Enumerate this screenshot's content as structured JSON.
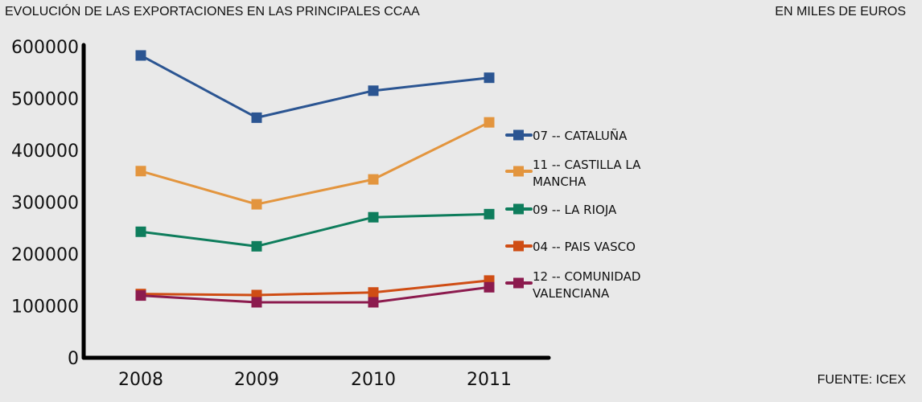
{
  "header": {
    "title": "EVOLUCIÓN DE LAS EXPORTACIONES EN LAS PRINCIPALES CCAA",
    "units": "EN MILES DE EUROS"
  },
  "footer": {
    "source": "FUENTE: ICEX"
  },
  "chart_data": {
    "type": "line",
    "title": "EVOLUCIÓN DE LAS EXPORTACIONES EN LAS PRINCIPALES CCAA",
    "subtitle": "EN MILES DE EUROS",
    "xlabel": "",
    "ylabel": "",
    "x": [
      "2008",
      "2009",
      "2010",
      "2011"
    ],
    "ylim": [
      0,
      600000
    ],
    "yticks": [
      0,
      100000,
      200000,
      300000,
      400000,
      500000,
      600000
    ],
    "ytick_labels": [
      "0",
      "100000",
      "200000",
      "300000",
      "400000",
      "500000",
      "600000"
    ],
    "grid": false,
    "legend_position": "right",
    "series": [
      {
        "name": "07 -- CATALUÑA",
        "label_lines": [
          "07 -- CATALUÑA"
        ],
        "color": "#2b5592",
        "values": [
          583000,
          463000,
          515000,
          540000
        ]
      },
      {
        "name": "11 -- CASTILLA LA MANCHA",
        "label_lines": [
          "11 -- CASTILLA LA",
          "MANCHA"
        ],
        "color": "#e3953e",
        "values": [
          360000,
          296000,
          344000,
          454000
        ]
      },
      {
        "name": "09 -- LA RIOJA",
        "label_lines": [
          "09 -- LA RIOJA"
        ],
        "color": "#0e7d5c",
        "values": [
          243000,
          215000,
          271000,
          277000
        ]
      },
      {
        "name": "04 -- PAIS VASCO",
        "label_lines": [
          "04 -- PAIS VASCO"
        ],
        "color": "#cf4d14",
        "values": [
          123000,
          121000,
          126000,
          149000
        ]
      },
      {
        "name": "12 -- COMUNIDAD VALENCIANA",
        "label_lines": [
          "12 -- COMUNIDAD",
          "VALENCIANA"
        ],
        "color": "#8c1b4e",
        "values": [
          120000,
          107000,
          107000,
          136000
        ]
      }
    ],
    "source": "FUENTE: ICEX"
  }
}
